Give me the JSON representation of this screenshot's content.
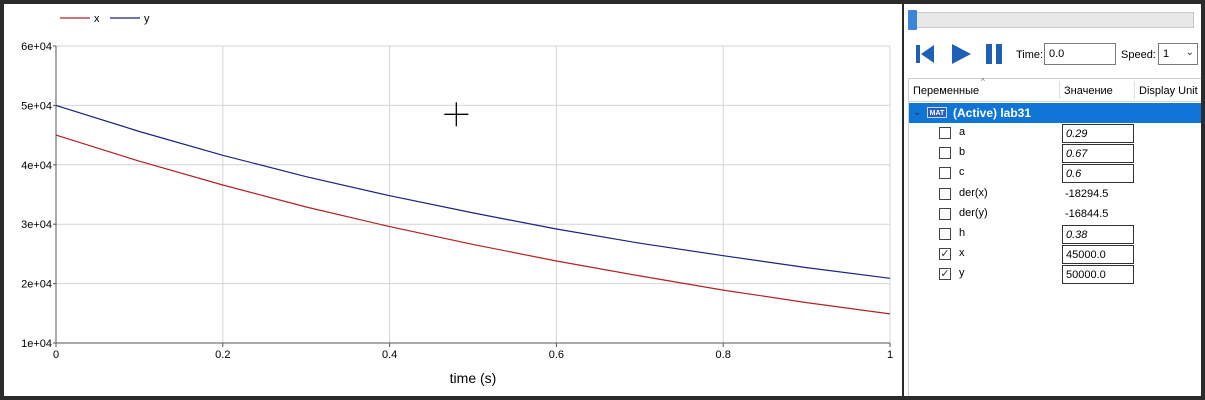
{
  "plot": {
    "legend": [
      {
        "label": "x",
        "color": "#b22222"
      },
      {
        "label": "y",
        "color": "#1a237e"
      }
    ],
    "crosshair": {
      "x": 0.48,
      "y": 48500
    }
  },
  "chart_data": {
    "type": "line",
    "xlabel": "time (s)",
    "ylabel": "",
    "xlim": [
      0,
      1
    ],
    "ylim": [
      10000,
      60000
    ],
    "xticks": [
      0,
      0.2,
      0.4,
      0.6,
      0.8,
      1
    ],
    "xtick_labels": [
      "0",
      "0.2",
      "0.4",
      "0.6",
      "0.8",
      "1"
    ],
    "yticks": [
      10000,
      20000,
      30000,
      40000,
      50000,
      60000
    ],
    "ytick_labels": [
      "1e+04",
      "2e+04",
      "3e+04",
      "4e+04",
      "5e+04",
      "6e+04"
    ],
    "grid": true,
    "legend_position": "top-left",
    "x": [
      0,
      0.1,
      0.2,
      0.3,
      0.4,
      0.5,
      0.6,
      0.7,
      0.8,
      0.9,
      1.0
    ],
    "series": [
      {
        "name": "x",
        "color": "#b22222",
        "values": [
          45000,
          40600,
          36600,
          32900,
          29600,
          26600,
          23800,
          21300,
          18900,
          16800,
          14900
        ]
      },
      {
        "name": "y",
        "color": "#1a237e",
        "values": [
          50000,
          45600,
          41600,
          38000,
          34800,
          31900,
          29200,
          26800,
          24700,
          22700,
          20900
        ]
      }
    ]
  },
  "sim": {
    "time_label": "Time:",
    "time_value": "0.0",
    "speed_label": "Speed:",
    "speed_value": "1",
    "progress": 0.0
  },
  "tree": {
    "col_variables": "Переменные",
    "col_value": "Значение",
    "col_unit": "Display Unit",
    "root": {
      "badge": "MAT",
      "label": "(Active) lab31"
    },
    "rows": [
      {
        "name": "a",
        "value": "0.29",
        "checked": false,
        "editable": true
      },
      {
        "name": "b",
        "value": "0.67",
        "checked": false,
        "editable": true
      },
      {
        "name": "c",
        "value": "0.6",
        "checked": false,
        "editable": true
      },
      {
        "name": "der(x)",
        "value": "-18294.5",
        "checked": false,
        "editable": false
      },
      {
        "name": "der(y)",
        "value": "-16844.5",
        "checked": false,
        "editable": false
      },
      {
        "name": "h",
        "value": "0.38",
        "checked": false,
        "editable": true
      },
      {
        "name": "x",
        "value": "45000.0",
        "checked": true,
        "editable": true,
        "plain": true
      },
      {
        "name": "y",
        "value": "50000.0",
        "checked": true,
        "editable": true,
        "plain": true
      }
    ]
  }
}
